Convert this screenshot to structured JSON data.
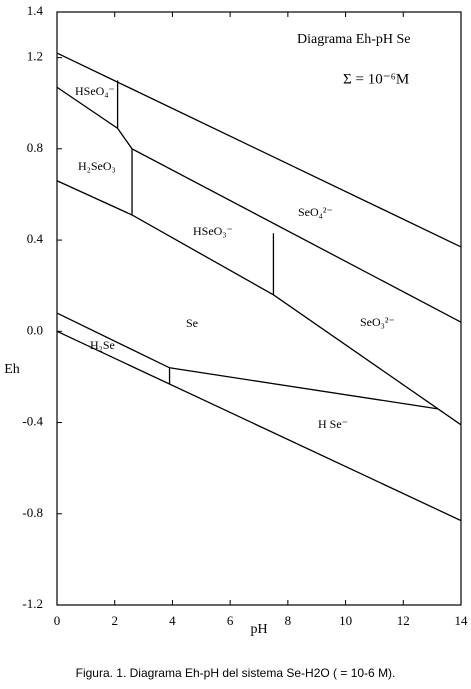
{
  "chart_data": {
    "type": "line",
    "title": "Diagrama Eh-pH   Se",
    "subtitle": "Σ = 10⁻⁶M",
    "x_label": "pH",
    "y_label": "Eh",
    "caption": "Figura. 1. Diagrama Eh-pH del sistema Se-H2O ( = 10-6 M).",
    "xlim": [
      0,
      14
    ],
    "ylim": [
      -1.2,
      1.4
    ],
    "xticks": [
      0,
      2,
      4,
      6,
      8,
      10,
      12,
      14
    ],
    "yticks": [
      1.4,
      1.2,
      0.8,
      0.4,
      {
        "value": 0,
        "label": "0.0"
      },
      -0.4,
      -0.8,
      -1.2
    ],
    "series": [
      {
        "color": "#000000",
        "x": [
          0,
          14
        ],
        "values": [
          1.22,
          0.37
        ]
      },
      {
        "color": "#000000",
        "x": [
          0,
          2.1,
          2.6,
          14
        ],
        "values": [
          1.07,
          0.89,
          0.8,
          0.04
        ]
      },
      {
        "color": "#000000",
        "x": [
          2.1,
          2.1
        ],
        "values": [
          1.1,
          0.89
        ]
      },
      {
        "color": "#000000",
        "x": [
          2.6,
          2.6
        ],
        "values": [
          0.8,
          0.51
        ]
      },
      {
        "color": "#000000",
        "x": [
          0,
          2.6,
          7.5,
          14
        ],
        "values": [
          0.66,
          0.51,
          0.16,
          -0.41
        ]
      },
      {
        "color": "#000000",
        "x": [
          7.5,
          7.5
        ],
        "values": [
          0.43,
          0.16
        ]
      },
      {
        "color": "#000000",
        "x": [
          0,
          3.9,
          13.2
        ],
        "values": [
          0.08,
          -0.16,
          -0.34
        ]
      },
      {
        "color": "#000000",
        "x": [
          0,
          14
        ],
        "values": [
          0.0,
          -0.83
        ]
      },
      {
        "color": "#000000",
        "x": [
          3.9,
          3.9
        ],
        "values": [
          -0.16,
          -0.23
        ]
      }
    ],
    "annotations": [
      "HSeO₄⁻",
      "H₂SeO₃",
      "HSeO₃⁻",
      "SeO₄²⁻",
      "SeO₃²⁻",
      "Se",
      "H₂Se",
      "H Se⁻"
    ]
  }
}
